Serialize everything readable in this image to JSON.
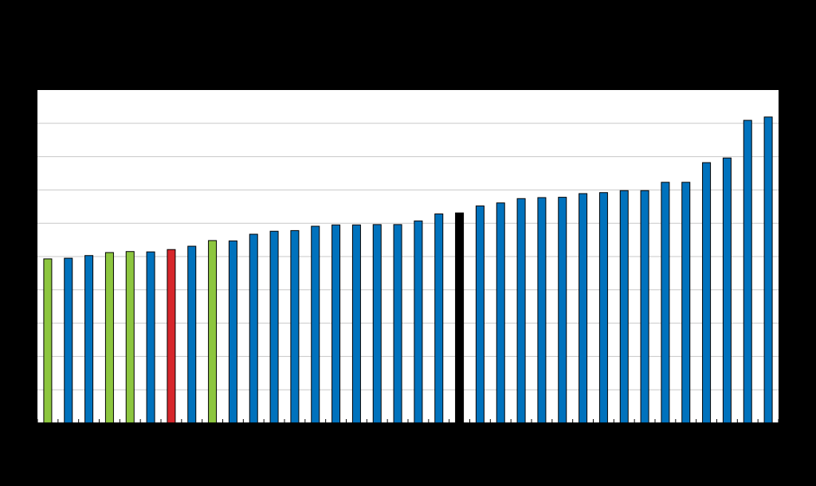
{
  "chart_data": {
    "type": "bar",
    "title": "",
    "xlabel": "",
    "ylabel": "",
    "ylim": [
      0,
      10
    ],
    "grid": true,
    "legend": "none",
    "colors": {
      "default": "#0072bd",
      "green": "#8dc63f",
      "red": "#d7262b",
      "black": "#000000",
      "plot_background": "#ffffff",
      "gridline": "#c8c8c8",
      "page_background": "#000000"
    },
    "values": [
      4.93,
      4.95,
      5.03,
      5.12,
      5.15,
      5.14,
      5.21,
      5.31,
      5.48,
      5.47,
      5.67,
      5.76,
      5.78,
      5.91,
      5.95,
      5.95,
      5.96,
      5.96,
      6.07,
      6.28,
      6.31,
      6.52,
      6.61,
      6.74,
      6.77,
      6.78,
      6.89,
      6.92,
      6.98,
      6.98,
      7.23,
      7.23,
      7.82,
      7.96,
      9.09,
      9.19
    ],
    "bar_colors": [
      "green",
      "default",
      "default",
      "green",
      "green",
      "default",
      "red",
      "default",
      "green",
      "default",
      "default",
      "default",
      "default",
      "default",
      "default",
      "default",
      "default",
      "default",
      "default",
      "default",
      "black",
      "default",
      "default",
      "default",
      "default",
      "default",
      "default",
      "default",
      "default",
      "default",
      "default",
      "default",
      "default",
      "default",
      "default",
      "default"
    ]
  }
}
